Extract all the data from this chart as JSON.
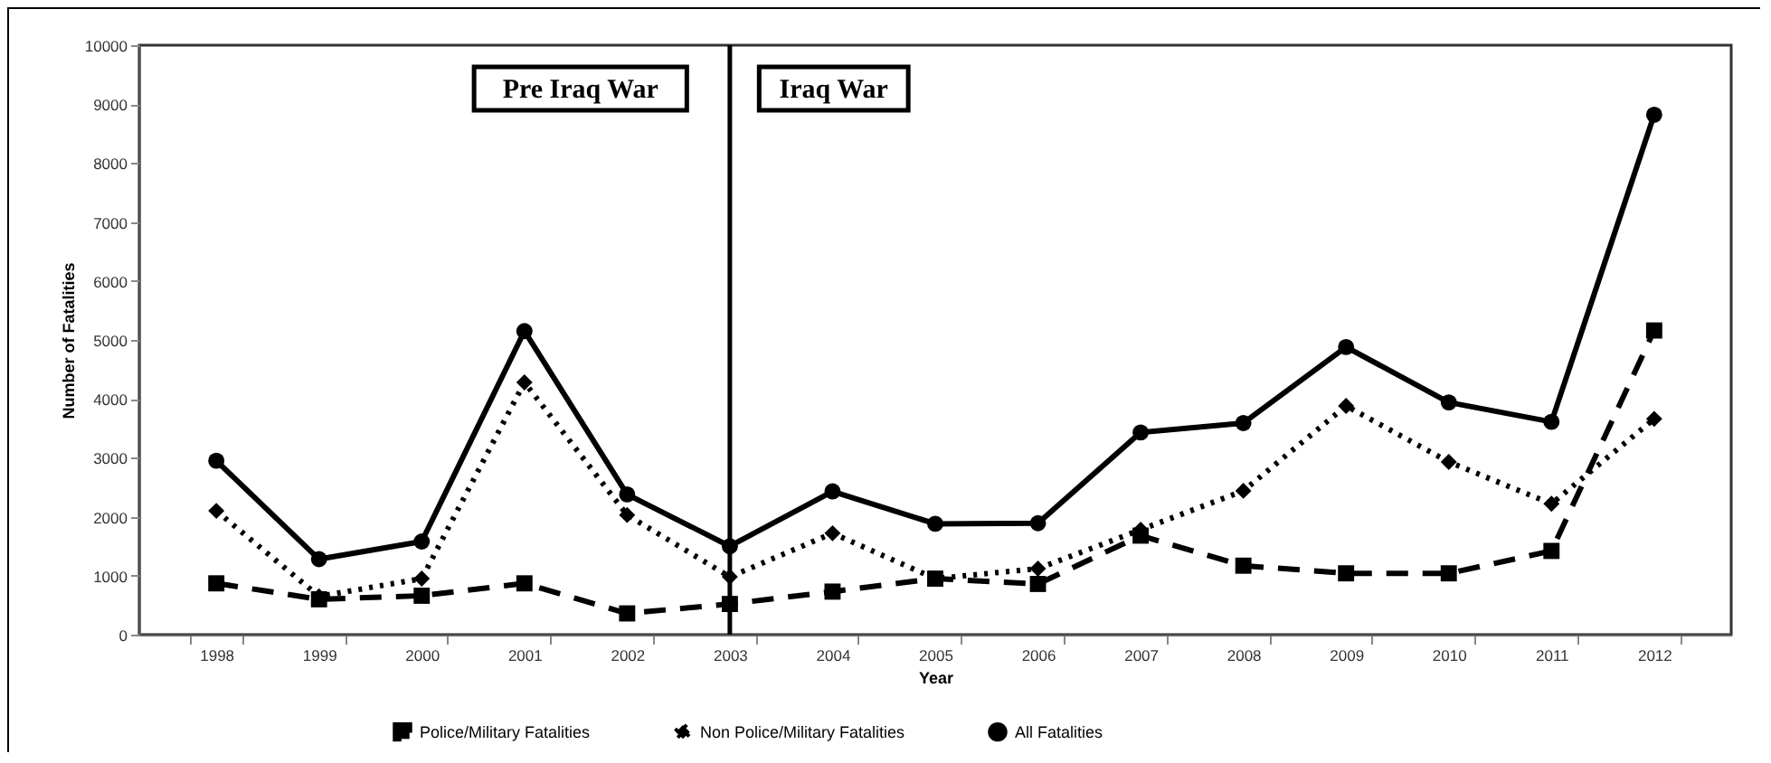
{
  "chart_data": {
    "type": "line",
    "xlabel": "Year",
    "ylabel": "Number of Fatalities",
    "categories": [
      "1998",
      "1999",
      "2000",
      "2001",
      "2002",
      "2003",
      "2004",
      "2005",
      "2006",
      "2007",
      "2008",
      "2009",
      "2010",
      "2011",
      "2012"
    ],
    "series": [
      {
        "name": "Police/Military Fatalities",
        "color": "#000000",
        "marker": "square",
        "line_style": "dashed",
        "values": [
          870,
          600,
          660,
          870,
          360,
          520,
          730,
          950,
          860,
          1680,
          1170,
          1040,
          1040,
          1420,
          5160
        ]
      },
      {
        "name": "Non Police/Military Fatalities",
        "color": "#000000",
        "marker": "diamond",
        "line_style": "dotted",
        "values": [
          2100,
          650,
          950,
          4280,
          2030,
          980,
          1720,
          950,
          1120,
          1780,
          2440,
          3880,
          2930,
          2220,
          3660
        ]
      },
      {
        "name": "All Fatalities",
        "color": "#000000",
        "marker": "circle",
        "line_style": "solid",
        "values": [
          2950,
          1280,
          1580,
          5150,
          2380,
          1500,
          2430,
          1880,
          1890,
          3430,
          3590,
          4880,
          3940,
          3610,
          8820
        ]
      }
    ],
    "ylim": [
      0,
      10000
    ],
    "yticks": [
      0,
      1000,
      2000,
      3000,
      4000,
      5000,
      6000,
      7000,
      8000,
      9000,
      10000
    ],
    "ref_lines": [
      {
        "axis": "x",
        "value": "2003",
        "color": "#000000"
      }
    ],
    "annotations": [
      "Pre Iraq War",
      "Iraq War"
    ],
    "grid": false,
    "legend": "bottom"
  }
}
